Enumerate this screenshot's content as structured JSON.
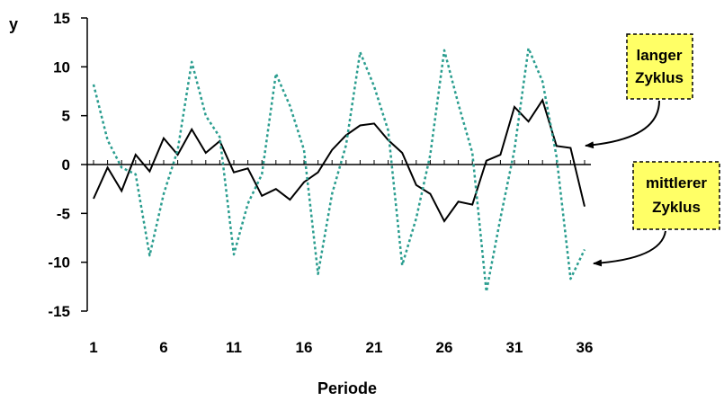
{
  "chart_data": {
    "type": "line",
    "x": [
      1,
      2,
      3,
      4,
      5,
      6,
      7,
      8,
      9,
      10,
      11,
      12,
      13,
      14,
      15,
      16,
      17,
      18,
      19,
      20,
      21,
      22,
      23,
      24,
      25,
      26,
      27,
      28,
      29,
      30,
      31,
      32,
      33,
      34,
      35,
      36
    ],
    "x_ticks": [
      1,
      6,
      11,
      16,
      21,
      26,
      31,
      36
    ],
    "y_ticks": [
      15,
      10,
      5,
      0,
      -5,
      -10,
      -15
    ],
    "ylim": [
      -15,
      15
    ],
    "xlabel": "Periode",
    "ylabel": "y",
    "series": [
      {
        "style": "solid",
        "color": "#000000",
        "values": [
          -3.5,
          -0.3,
          -2.7,
          1.0,
          -0.7,
          2.7,
          1.0,
          3.6,
          1.2,
          2.4,
          -0.8,
          -0.4,
          -3.2,
          -2.5,
          -3.6,
          -1.8,
          -0.8,
          1.5,
          3.0,
          4.0,
          4.2,
          2.5,
          1.2,
          -2.1,
          -3.0,
          -5.8,
          -3.8,
          -4.1,
          0.4,
          1.0,
          5.9,
          4.4,
          6.6,
          1.9,
          1.7,
          -4.3
        ]
      },
      {
        "style": "dotted",
        "color": "#2a9d8f",
        "values": [
          8.2,
          2.5,
          -0.3,
          -1.0,
          -9.3,
          -3.0,
          1.5,
          10.5,
          5.0,
          2.8,
          -9.2,
          -4.0,
          -1.0,
          9.3,
          6.0,
          1.5,
          -11.2,
          -3.0,
          2.0,
          11.5,
          8.0,
          3.5,
          -10.3,
          -5.5,
          1.0,
          11.7,
          6.2,
          1.2,
          -13.0,
          -5.5,
          1.5,
          11.9,
          8.5,
          0.8,
          -11.7,
          -8.7
        ]
      }
    ],
    "annotations": [
      {
        "lines": [
          "langer",
          "Zyklus"
        ]
      },
      {
        "lines": [
          "mittlerer",
          "Zyklus"
        ]
      }
    ],
    "colors": {
      "callout_fill": "#ffff66",
      "callout_border": "#000000"
    }
  }
}
